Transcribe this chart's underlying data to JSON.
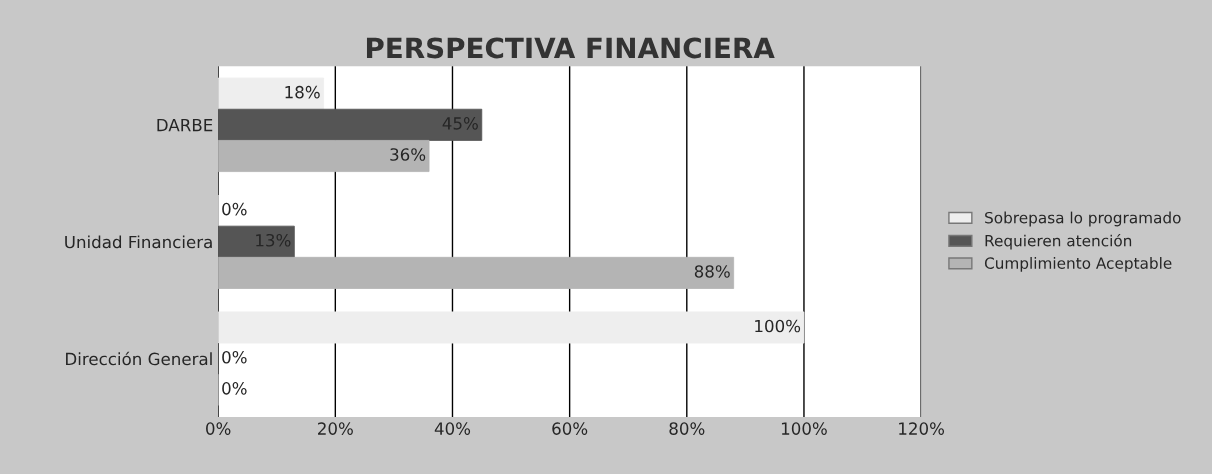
{
  "chart_data": {
    "type": "bar",
    "orientation": "horizontal",
    "title": "PERSPECTIVA FINANCIERA",
    "categories": [
      "DARBE",
      "Unidad Financiera",
      "Dirección General"
    ],
    "series": [
      {
        "name": "Sobrepasa lo programado",
        "color": "#eeeeee",
        "values": [
          18,
          0,
          100
        ],
        "value_labels": [
          "18%",
          "0%",
          "100%"
        ]
      },
      {
        "name": "Requieren atención",
        "color": "#555555",
        "values": [
          45,
          13,
          0
        ],
        "value_labels": [
          "45%",
          "13%",
          "0%"
        ]
      },
      {
        "name": "Cumplimiento Aceptable",
        "color": "#b4b4b4",
        "values": [
          36,
          88,
          0
        ],
        "value_labels": [
          "36%",
          "88%",
          "0%"
        ]
      }
    ],
    "xlim": [
      0,
      120
    ],
    "xticks": [
      {
        "value": 0,
        "label": "0%"
      },
      {
        "value": 20,
        "label": "20%"
      },
      {
        "value": 40,
        "label": "40%"
      },
      {
        "value": 60,
        "label": "60%"
      },
      {
        "value": 80,
        "label": "80%"
      },
      {
        "value": 100,
        "label": "100%"
      },
      {
        "value": 120,
        "label": "120%"
      }
    ],
    "grid": "x",
    "legend": "right"
  }
}
